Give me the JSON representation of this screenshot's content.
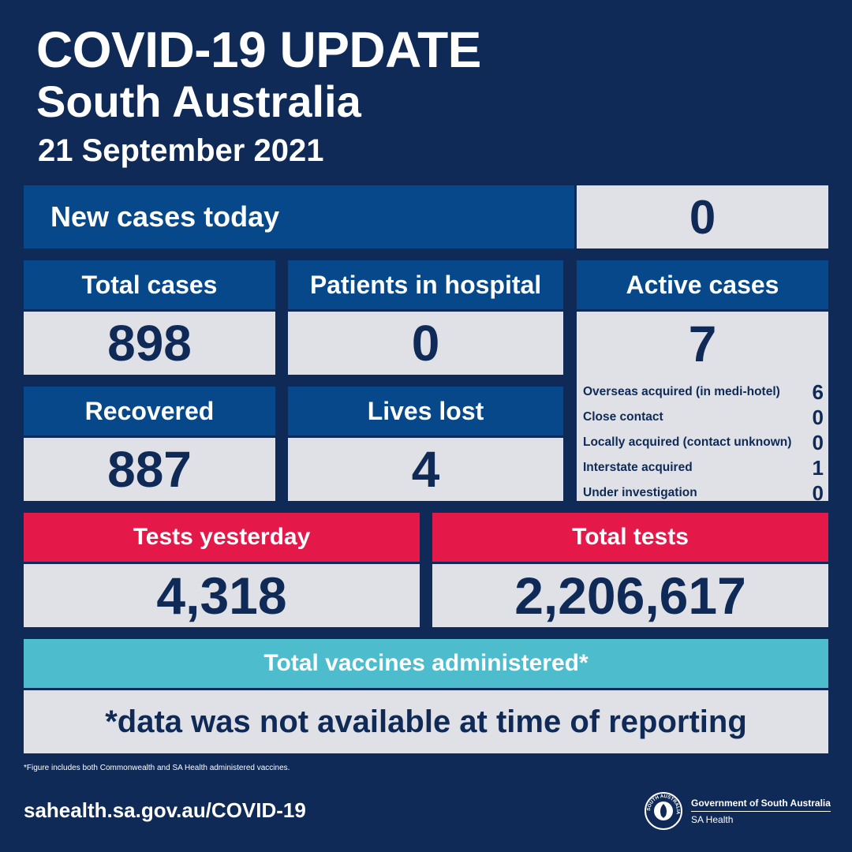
{
  "header": {
    "title": "COVID-19 UPDATE",
    "subtitle": "South Australia",
    "date": "21 September 2021"
  },
  "new_cases": {
    "label": "New cases today",
    "value": "0"
  },
  "total_cases": {
    "label": "Total cases",
    "value": "898"
  },
  "hospital": {
    "label": "Patients in hospital",
    "value": "0"
  },
  "active": {
    "label": "Active cases",
    "value": "7",
    "breakdown": [
      {
        "label": "Overseas acquired (in medi-hotel)",
        "value": "6"
      },
      {
        "label": "Close contact",
        "value": "0"
      },
      {
        "label": "Locally acquired (contact unknown)",
        "value": "0"
      },
      {
        "label": "Interstate acquired",
        "value": "1"
      },
      {
        "label": "Under investigation",
        "value": "0"
      }
    ]
  },
  "recovered": {
    "label": "Recovered",
    "value": "887"
  },
  "lives_lost": {
    "label": "Lives lost",
    "value": "4"
  },
  "tests_yesterday": {
    "label": "Tests yesterday",
    "value": "4,318"
  },
  "total_tests": {
    "label": "Total tests",
    "value": "2,206,617"
  },
  "vaccines": {
    "label": "Total vaccines administered*",
    "note": "*data was not available at time of reporting"
  },
  "footnote": "*Figure includes both Commonwealth and SA Health administered vaccines.",
  "footer": {
    "url": "sahealth.sa.gov.au/COVID-19",
    "gov_name": "Government of South Australia",
    "dept": "SA Health",
    "seal_text": "SOUTH AUSTRALIA"
  },
  "colors": {
    "background": "#0f2a56",
    "header_blue": "#07488a",
    "header_red": "#e4194a",
    "header_teal": "#4dbccd",
    "value_panel": "#dfe1e6"
  }
}
